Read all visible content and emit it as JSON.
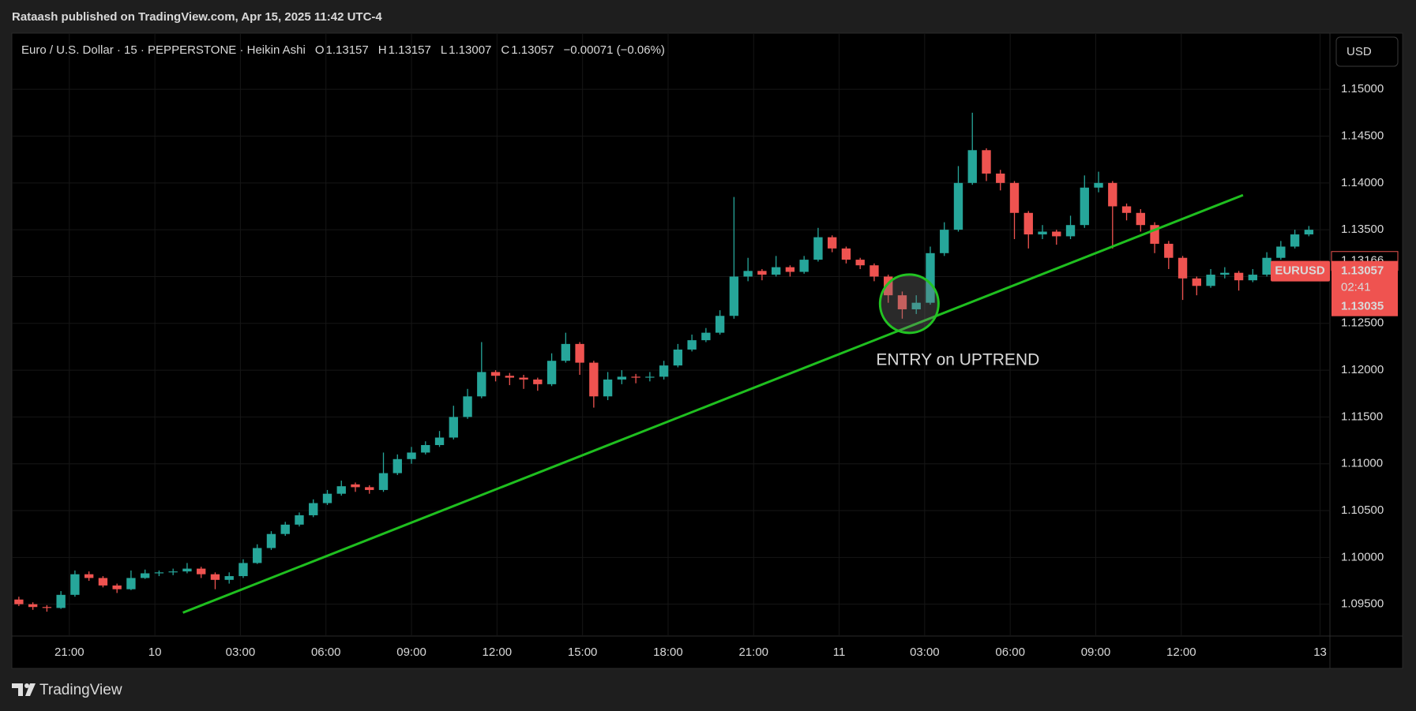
{
  "header": {
    "publisher": "Rataash published on TradingView.com, Apr 15, 2025 11:42 UTC-4"
  },
  "footer": {
    "brand": "TradingView"
  },
  "chart_data": {
    "type": "candlestick",
    "title": "Euro / U.S. Dollar · 15 · PEPPERSTONE · Heikin Ashi",
    "ohlc_labels": [
      "O",
      "H",
      "L",
      "C"
    ],
    "change": "−0.00071 (−0.06%)",
    "currency": "USD",
    "up_color": "#26a69a",
    "down_color": "#ef5350",
    "candles": [
      [
        1.0955,
        1.0958,
        1.0948,
        1.095
      ],
      [
        1.095,
        1.0952,
        1.0944,
        1.0947
      ],
      [
        1.0947,
        1.0949,
        1.0942,
        1.0946
      ],
      [
        1.0946,
        1.0964,
        1.0945,
        1.096
      ],
      [
        1.096,
        1.0986,
        1.0958,
        1.0982
      ],
      [
        1.0982,
        1.0985,
        1.0975,
        1.0978
      ],
      [
        1.0978,
        1.098,
        1.0968,
        1.097
      ],
      [
        1.097,
        1.0972,
        1.0962,
        1.0966
      ],
      [
        1.0966,
        1.0986,
        1.0965,
        1.0978
      ],
      [
        1.0978,
        1.0987,
        1.0977,
        1.0983
      ],
      [
        1.0983,
        1.0986,
        1.098,
        1.0984
      ],
      [
        1.0984,
        1.0988,
        1.0981,
        1.0985
      ],
      [
        1.0985,
        1.0994,
        1.0983,
        1.0988
      ],
      [
        1.0988,
        1.099,
        1.0978,
        1.0982
      ],
      [
        1.0982,
        1.0984,
        1.0966,
        1.0976
      ],
      [
        1.0976,
        1.0984,
        1.0972,
        1.098
      ],
      [
        1.098,
        1.0998,
        1.0978,
        1.0994
      ],
      [
        1.0994,
        1.1014,
        1.0993,
        1.101
      ],
      [
        1.101,
        1.1028,
        1.1008,
        1.1025
      ],
      [
        1.1025,
        1.1038,
        1.1023,
        1.1035
      ],
      [
        1.1035,
        1.1048,
        1.1033,
        1.1045
      ],
      [
        1.1045,
        1.1062,
        1.1043,
        1.1058
      ],
      [
        1.1058,
        1.1072,
        1.1056,
        1.1068
      ],
      [
        1.1068,
        1.1082,
        1.1066,
        1.1076
      ],
      [
        1.1078,
        1.108,
        1.107,
        1.1075
      ],
      [
        1.1075,
        1.1077,
        1.1068,
        1.1072
      ],
      [
        1.1072,
        1.1112,
        1.107,
        1.109
      ],
      [
        1.109,
        1.111,
        1.1088,
        1.1105
      ],
      [
        1.1105,
        1.1118,
        1.11,
        1.1112
      ],
      [
        1.1112,
        1.1124,
        1.111,
        1.112
      ],
      [
        1.112,
        1.1135,
        1.1118,
        1.1128
      ],
      [
        1.1128,
        1.1162,
        1.1126,
        1.115
      ],
      [
        1.115,
        1.118,
        1.1148,
        1.1172
      ],
      [
        1.1172,
        1.123,
        1.117,
        1.1198
      ],
      [
        1.1198,
        1.12,
        1.1188,
        1.1194
      ],
      [
        1.1194,
        1.1197,
        1.1184,
        1.1192
      ],
      [
        1.1192,
        1.1195,
        1.118,
        1.119
      ],
      [
        1.119,
        1.1192,
        1.1178,
        1.1185
      ],
      [
        1.1185,
        1.1218,
        1.1183,
        1.121
      ],
      [
        1.121,
        1.124,
        1.1208,
        1.1228
      ],
      [
        1.1228,
        1.123,
        1.1195,
        1.1208
      ],
      [
        1.1208,
        1.121,
        1.116,
        1.1172
      ],
      [
        1.1172,
        1.1198,
        1.1168,
        1.119
      ],
      [
        1.119,
        1.12,
        1.1185,
        1.1193
      ],
      [
        1.1193,
        1.1196,
        1.1186,
        1.1192
      ],
      [
        1.1192,
        1.1198,
        1.1188,
        1.1193
      ],
      [
        1.1193,
        1.121,
        1.119,
        1.1205
      ],
      [
        1.1205,
        1.1228,
        1.1203,
        1.1222
      ],
      [
        1.1222,
        1.1238,
        1.122,
        1.1232
      ],
      [
        1.1232,
        1.1245,
        1.123,
        1.124
      ],
      [
        1.124,
        1.1264,
        1.1238,
        1.1258
      ],
      [
        1.1258,
        1.1385,
        1.1255,
        1.13
      ],
      [
        1.13,
        1.132,
        1.1295,
        1.1306
      ],
      [
        1.1306,
        1.1308,
        1.1296,
        1.1302
      ],
      [
        1.1302,
        1.1322,
        1.13,
        1.131
      ],
      [
        1.131,
        1.1312,
        1.13,
        1.1305
      ],
      [
        1.1305,
        1.1322,
        1.1303,
        1.1318
      ],
      [
        1.1318,
        1.1352,
        1.1316,
        1.1342
      ],
      [
        1.1342,
        1.1344,
        1.1326,
        1.133
      ],
      [
        1.133,
        1.1332,
        1.1314,
        1.1318
      ],
      [
        1.1318,
        1.132,
        1.1308,
        1.1312
      ],
      [
        1.1312,
        1.1314,
        1.1295,
        1.13
      ],
      [
        1.13,
        1.1302,
        1.1272,
        1.128
      ],
      [
        1.128,
        1.1284,
        1.1255,
        1.1265
      ],
      [
        1.1265,
        1.128,
        1.126,
        1.1272
      ],
      [
        1.1272,
        1.1332,
        1.127,
        1.1325
      ],
      [
        1.1325,
        1.1358,
        1.1322,
        1.135
      ],
      [
        1.135,
        1.1418,
        1.1348,
        1.14
      ],
      [
        1.14,
        1.1475,
        1.1398,
        1.1435
      ],
      [
        1.1435,
        1.1437,
        1.1402,
        1.141
      ],
      [
        1.141,
        1.1414,
        1.1392,
        1.14
      ],
      [
        1.14,
        1.1402,
        1.134,
        1.1368
      ],
      [
        1.1368,
        1.137,
        1.133,
        1.1345
      ],
      [
        1.1345,
        1.1355,
        1.134,
        1.1348
      ],
      [
        1.1348,
        1.135,
        1.1334,
        1.1343
      ],
      [
        1.1343,
        1.1365,
        1.134,
        1.1355
      ],
      [
        1.1355,
        1.1408,
        1.1352,
        1.1395
      ],
      [
        1.1395,
        1.1412,
        1.139,
        1.14
      ],
      [
        1.14,
        1.1402,
        1.133,
        1.1375
      ],
      [
        1.1375,
        1.1378,
        1.136,
        1.1368
      ],
      [
        1.1368,
        1.1372,
        1.1348,
        1.1355
      ],
      [
        1.1355,
        1.1358,
        1.1325,
        1.1335
      ],
      [
        1.1335,
        1.1338,
        1.1308,
        1.132
      ],
      [
        1.132,
        1.1322,
        1.1275,
        1.1298
      ],
      [
        1.1298,
        1.13,
        1.128,
        1.129
      ],
      [
        1.129,
        1.1308,
        1.1288,
        1.1302
      ],
      [
        1.1302,
        1.131,
        1.1298,
        1.1304
      ],
      [
        1.1304,
        1.1306,
        1.1285,
        1.1296
      ],
      [
        1.1296,
        1.1308,
        1.1294,
        1.1302
      ],
      [
        1.1302,
        1.1326,
        1.13,
        1.132
      ],
      [
        1.132,
        1.1338,
        1.1318,
        1.1332
      ],
      [
        1.1332,
        1.135,
        1.133,
        1.1345
      ],
      [
        1.1345,
        1.1354,
        1.1343,
        1.135
      ],
      [
        1.13157,
        1.13157,
        1.13007,
        1.13057
      ]
    ],
    "xlim": [
      0,
      94
    ],
    "xticks": [
      {
        "value": 4.1,
        "label": "21:00"
      },
      {
        "value": 10.2,
        "label": "10"
      },
      {
        "value": 16.3,
        "label": "03:00"
      },
      {
        "value": 22.4,
        "label": "06:00"
      },
      {
        "value": 28.5,
        "label": "09:00"
      },
      {
        "value": 34.6,
        "label": "12:00"
      },
      {
        "value": 40.7,
        "label": "15:00"
      },
      {
        "value": 46.8,
        "label": "18:00"
      },
      {
        "value": 52.9,
        "label": "21:00"
      },
      {
        "value": 59.0,
        "label": "11"
      },
      {
        "value": 65.1,
        "label": "03:00"
      },
      {
        "value": 71.2,
        "label": "06:00"
      },
      {
        "value": 77.3,
        "label": "09:00"
      },
      {
        "value": 83.4,
        "label": "12:00"
      },
      {
        "value": 93.3,
        "label": "13"
      }
    ],
    "ylim": [
      1.0916,
      1.156
    ],
    "yticks": [
      {
        "value": 1.095,
        "label": "1.09500"
      },
      {
        "value": 1.1,
        "label": "1.10000"
      },
      {
        "value": 1.105,
        "label": "1.10500"
      },
      {
        "value": 1.11,
        "label": "1.11000"
      },
      {
        "value": 1.115,
        "label": "1.11500"
      },
      {
        "value": 1.12,
        "label": "1.12000"
      },
      {
        "value": 1.125,
        "label": "1.12500"
      },
      {
        "value": 1.13,
        "label": "1.13000"
      },
      {
        "value": 1.135,
        "label": "1.13500"
      },
      {
        "value": 1.14,
        "label": "1.14000"
      },
      {
        "value": 1.145,
        "label": "1.14500"
      },
      {
        "value": 1.15,
        "label": "1.15000"
      }
    ],
    "grid": true,
    "price_badges": {
      "high": 1.13166,
      "symbol": "EURUSD",
      "countdown": "02:41",
      "low": 1.13035
    },
    "trendline": {
      "x": [
        12.2,
        87.8
      ],
      "y": [
        1.0941,
        1.1387
      ],
      "color": "#1fbf1f"
    },
    "annotation": {
      "text": "ENTRY on UPTREND",
      "x": 64.0,
      "y": 1.1271,
      "color": "#22c322"
    }
  }
}
